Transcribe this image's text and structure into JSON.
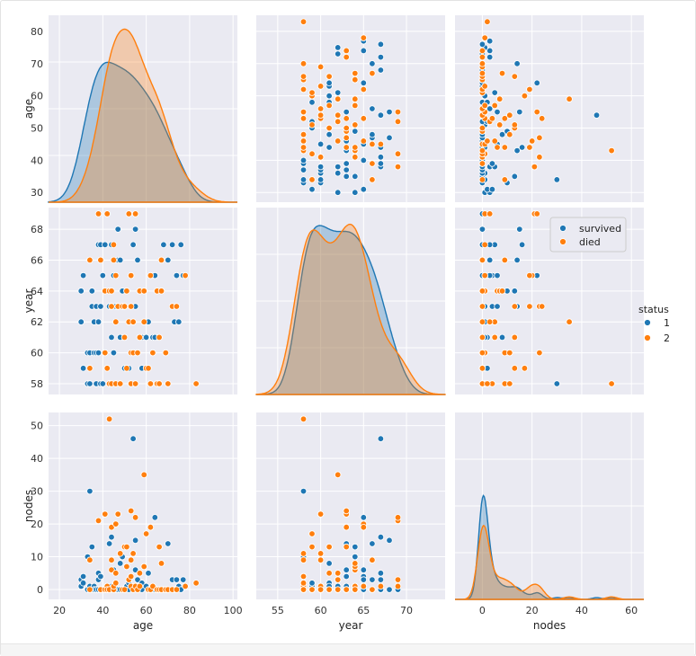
{
  "colors": {
    "survived": "#1f77b4",
    "died": "#ff7f0e",
    "panel_bg": "#eaeaf2",
    "grid": "#ffffff"
  },
  "legend_inner": {
    "labels": [
      "survived",
      "died"
    ]
  },
  "legend_outer": {
    "title": "status",
    "labels": [
      "1",
      "2"
    ]
  },
  "chart_data": {
    "type": "scatter",
    "title": "",
    "variables": [
      "age",
      "year",
      "nodes"
    ],
    "hue": "status",
    "diagonal": "kde",
    "axes": {
      "age": {
        "label": "age",
        "ticks": [
          20,
          40,
          60,
          80,
          100
        ],
        "ylim": [
          27,
          85
        ],
        "ticks_y": [
          30,
          40,
          50,
          60,
          70,
          80
        ],
        "xlim": [
          15,
          102
        ]
      },
      "year": {
        "label": "year",
        "ticks": [
          55,
          60,
          65,
          70
        ],
        "ylim": [
          57.3,
          69.4
        ],
        "ticks_y": [
          58,
          60,
          62,
          64,
          66,
          68
        ],
        "xlim": [
          52.5,
          74.5
        ]
      },
      "nodes": {
        "label": "nodes",
        "ticks": [
          0,
          20,
          40,
          60
        ],
        "ylim": [
          -3,
          54
        ],
        "ticks_y": [
          0,
          10,
          20,
          30,
          40,
          50
        ],
        "xlim": [
          -11,
          65
        ]
      }
    },
    "kde_y_max": {
      "age": 0.034,
      "year": 0.105,
      "nodes": 0.23
    },
    "series": [
      {
        "name": "survived",
        "status": 1,
        "points": [
          [
            30,
            64,
            1
          ],
          [
            30,
            62,
            3
          ],
          [
            31,
            59,
            2
          ],
          [
            31,
            65,
            4
          ],
          [
            33,
            58,
            10
          ],
          [
            33,
            60,
            0
          ],
          [
            34,
            59,
            0
          ],
          [
            34,
            66,
            9
          ],
          [
            34,
            58,
            30
          ],
          [
            34,
            60,
            1
          ],
          [
            35,
            63,
            0
          ],
          [
            35,
            64,
            13
          ],
          [
            36,
            60,
            1
          ],
          [
            36,
            62,
            0
          ],
          [
            37,
            60,
            0
          ],
          [
            37,
            63,
            0
          ],
          [
            37,
            58,
            0
          ],
          [
            38,
            69,
            21
          ],
          [
            38,
            62,
            3
          ],
          [
            38,
            60,
            0
          ],
          [
            38,
            67,
            5
          ],
          [
            39,
            66,
            0
          ],
          [
            39,
            63,
            4
          ],
          [
            39,
            67,
            0
          ],
          [
            39,
            58,
            0
          ],
          [
            40,
            65,
            0
          ],
          [
            40,
            58,
            0
          ],
          [
            41,
            60,
            23
          ],
          [
            41,
            64,
            0
          ],
          [
            41,
            67,
            0
          ],
          [
            42,
            69,
            1
          ],
          [
            42,
            59,
            0
          ],
          [
            43,
            64,
            0
          ],
          [
            43,
            63,
            14
          ],
          [
            43,
            58,
            52
          ],
          [
            44,
            61,
            0
          ],
          [
            44,
            63,
            1
          ],
          [
            44,
            67,
            16
          ],
          [
            45,
            65,
            6
          ],
          [
            45,
            60,
            0
          ],
          [
            46,
            58,
            2
          ],
          [
            46,
            63,
            0
          ],
          [
            47,
            63,
            23
          ],
          [
            47,
            66,
            0
          ],
          [
            47,
            68,
            0
          ],
          [
            48,
            58,
            11
          ],
          [
            48,
            61,
            8
          ],
          [
            48,
            66,
            0
          ],
          [
            49,
            63,
            0
          ],
          [
            49,
            64,
            10
          ],
          [
            50,
            59,
            0
          ],
          [
            50,
            63,
            13
          ],
          [
            50,
            61,
            0
          ],
          [
            51,
            64,
            7
          ],
          [
            51,
            59,
            1
          ],
          [
            52,
            69,
            0
          ],
          [
            52,
            59,
            2
          ],
          [
            52,
            62,
            3
          ],
          [
            53,
            58,
            4
          ],
          [
            53,
            65,
            1
          ],
          [
            54,
            60,
            11
          ],
          [
            54,
            67,
            46
          ],
          [
            54,
            62,
            0
          ],
          [
            55,
            63,
            6
          ],
          [
            55,
            68,
            15
          ],
          [
            55,
            58,
            1
          ],
          [
            56,
            60,
            0
          ],
          [
            56,
            66,
            3
          ],
          [
            57,
            61,
            5
          ],
          [
            57,
            64,
            1
          ],
          [
            58,
            59,
            0
          ],
          [
            58,
            61,
            2
          ],
          [
            59,
            62,
            35
          ],
          [
            59,
            64,
            7
          ],
          [
            60,
            59,
            17
          ],
          [
            60,
            61,
            1
          ],
          [
            61,
            59,
            0
          ],
          [
            61,
            62,
            5
          ],
          [
            62,
            58,
            0
          ],
          [
            62,
            65,
            19
          ],
          [
            63,
            60,
            1
          ],
          [
            63,
            61,
            0
          ],
          [
            64,
            61,
            0
          ],
          [
            64,
            65,
            22
          ],
          [
            65,
            58,
            0
          ],
          [
            65,
            64,
            0
          ],
          [
            66,
            58,
            0
          ],
          [
            66,
            61,
            13
          ],
          [
            67,
            66,
            0
          ],
          [
            67,
            64,
            8
          ],
          [
            68,
            67,
            0
          ],
          [
            69,
            60,
            0
          ],
          [
            70,
            58,
            0
          ],
          [
            70,
            66,
            14
          ],
          [
            72,
            67,
            3
          ],
          [
            73,
            62,
            0
          ],
          [
            74,
            65,
            3
          ],
          [
            75,
            62,
            1
          ],
          [
            76,
            67,
            0
          ],
          [
            77,
            65,
            3
          ],
          [
            78,
            65,
            1
          ]
        ]
      },
      {
        "name": "died",
        "status": 2,
        "points": [
          [
            34,
            59,
            0
          ],
          [
            34,
            66,
            9
          ],
          [
            38,
            69,
            21
          ],
          [
            39,
            66,
            0
          ],
          [
            41,
            60,
            23
          ],
          [
            41,
            64,
            0
          ],
          [
            42,
            69,
            1
          ],
          [
            42,
            59,
            0
          ],
          [
            43,
            58,
            52
          ],
          [
            43,
            64,
            0
          ],
          [
            44,
            64,
            6
          ],
          [
            44,
            58,
            9
          ],
          [
            44,
            63,
            19
          ],
          [
            45,
            66,
            0
          ],
          [
            45,
            67,
            1
          ],
          [
            46,
            58,
            2
          ],
          [
            46,
            62,
            5
          ],
          [
            46,
            65,
            20
          ],
          [
            47,
            63,
            23
          ],
          [
            48,
            58,
            11
          ],
          [
            49,
            63,
            0
          ],
          [
            50,
            63,
            13
          ],
          [
            50,
            61,
            0
          ],
          [
            51,
            59,
            13
          ],
          [
            51,
            64,
            7
          ],
          [
            52,
            69,
            3
          ],
          [
            52,
            62,
            3
          ],
          [
            53,
            58,
            4
          ],
          [
            53,
            65,
            1
          ],
          [
            53,
            60,
            9
          ],
          [
            53,
            63,
            24
          ],
          [
            54,
            60,
            11
          ],
          [
            54,
            62,
            0
          ],
          [
            55,
            69,
            22
          ],
          [
            55,
            58,
            1
          ],
          [
            56,
            60,
            0
          ],
          [
            57,
            61,
            5
          ],
          [
            57,
            64,
            1
          ],
          [
            59,
            62,
            35
          ],
          [
            59,
            64,
            7
          ],
          [
            60,
            59,
            17
          ],
          [
            61,
            59,
            0
          ],
          [
            62,
            58,
            0
          ],
          [
            62,
            65,
            19
          ],
          [
            63,
            60,
            1
          ],
          [
            65,
            58,
            0
          ],
          [
            65,
            64,
            0
          ],
          [
            66,
            58,
            0
          ],
          [
            66,
            61,
            13
          ],
          [
            67,
            66,
            0
          ],
          [
            67,
            64,
            8
          ],
          [
            69,
            60,
            0
          ],
          [
            70,
            58,
            0
          ],
          [
            72,
            63,
            0
          ],
          [
            74,
            63,
            0
          ],
          [
            78,
            65,
            1
          ],
          [
            83,
            58,
            2
          ]
        ]
      }
    ]
  }
}
